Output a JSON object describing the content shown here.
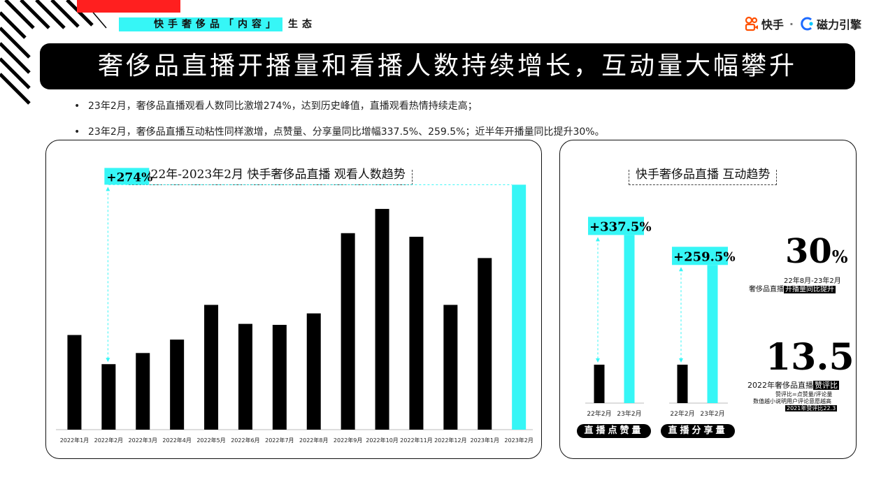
{
  "header": {
    "tag_highlight": "快手奢侈品「内容」",
    "tag_tail": "生态",
    "logo_brand": "快手",
    "logo_separator": "·",
    "logo_partner": "磁力引擎"
  },
  "title": "奢侈品直播开播量和看播人数持续增长，互动量大幅攀升",
  "bullets": [
    "23年2月，奢侈品直播观看人数同比激增274%，达到历史峰值，直播观看热情持续走高；",
    "23年2月，奢侈品直播互动粘性同样激增，点赞量、分享量同比增幅337.5%、259.5%；近半年开播量同比提升30%。"
  ],
  "colors": {
    "accent": "#36f6f6",
    "bar": "#000000",
    "red": "#ff1f1f"
  },
  "chart_data": [
    {
      "type": "bar",
      "title": "2022年-2023年2月 快手奢侈品直播 观看人数趋势",
      "categories": [
        "2022年1月",
        "2022年2月",
        "2022年3月",
        "2022年4月",
        "2022年5月",
        "2022年6月",
        "2022年7月",
        "2022年8月",
        "2022年9月",
        "2022年10月",
        "2022年11月",
        "2022年12月",
        "2023年1月",
        "2023年2月"
      ],
      "values": [
        28.9,
        20.0,
        23.4,
        27.5,
        38.1,
        32.3,
        32.0,
        35.5,
        60.0,
        67.4,
        58.9,
        38.1,
        52.4,
        74.8
      ],
      "highlight_index": 13,
      "annotation": "+274%",
      "ylim": [
        0,
        80
      ],
      "grid": false,
      "legend": "none"
    },
    {
      "type": "bar",
      "title": "快手奢侈品直播 互动趋势",
      "groups": [
        {
          "label": "直播点赞量",
          "categories": [
            "22年2月",
            "23年2月"
          ],
          "values": [
            1.0,
            4.375
          ],
          "annotation": "+337.5%"
        },
        {
          "label": "直播分享量",
          "categories": [
            "22年2月",
            "23年2月"
          ],
          "values": [
            1.0,
            3.595
          ],
          "annotation": "+259.5%"
        }
      ]
    }
  ],
  "stats": [
    {
      "value": "30",
      "unit": "%",
      "line1": "22年8月-23年2月",
      "line2_plain": "奢侈品直播",
      "line2_hl": "开播量同比提升"
    },
    {
      "value": "13.5",
      "line1_plain": "2022年奢侈品直播",
      "line1_hl": "赞评比",
      "note1": "赞评比=点赞量/评论量",
      "note2": "数值越小说明用户评论意愿越高",
      "note3": "2021年赞评比22.3"
    }
  ]
}
